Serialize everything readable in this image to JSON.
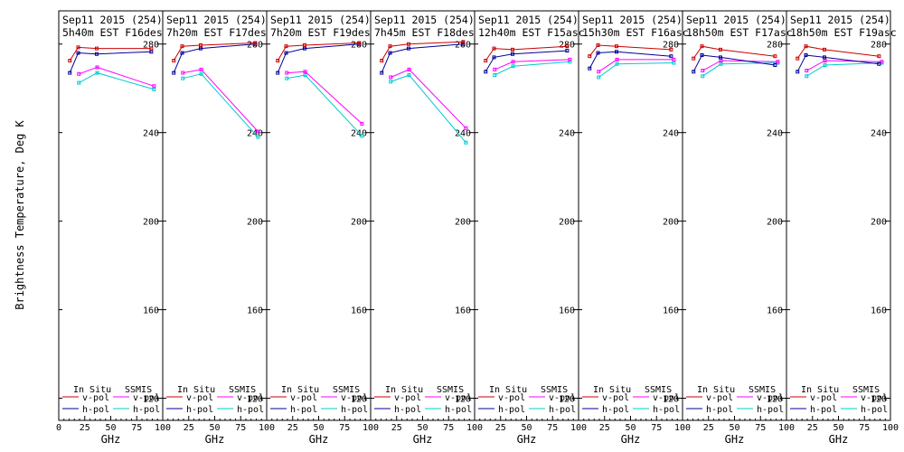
{
  "chart_data": {
    "type": "line",
    "ylabel": "Brightness Temperature, Deg K",
    "xlabel": "GHz",
    "xlim": [
      0,
      100
    ],
    "ylim": [
      110,
      295
    ],
    "yticks": [
      120,
      160,
      200,
      240,
      280
    ],
    "xticks_first": [
      "0",
      "25",
      "50",
      "75",
      "100"
    ],
    "xticks_rest": [
      "25",
      "50",
      "75",
      "100"
    ],
    "legend": {
      "in_situ_title": "In Situ",
      "ssmis_title": "SSMIS",
      "vpol": "v-pol",
      "hpol": "h-pol"
    },
    "colors": {
      "in_situ_v": "#cc0000",
      "in_situ_h": "#000099",
      "ssmis_v": "#ff00ff",
      "ssmis_h": "#00cccc"
    },
    "panels": [
      {
        "title1": "Sep11 2015 (254)",
        "title2": "5h40m EST F16des",
        "in_situ_v": {
          "x": [
            10.65,
            18.7,
            36.5,
            89.0
          ],
          "y": [
            272.5,
            278.5,
            278,
            278
          ]
        },
        "in_situ_h": {
          "x": [
            10.65,
            18.7,
            36.5,
            89.0
          ],
          "y": [
            267,
            276,
            275.5,
            276.5
          ]
        },
        "ssmis_v": {
          "x": [
            19.35,
            37.0,
            91.65
          ],
          "y": [
            266.5,
            269.5,
            261
          ]
        },
        "ssmis_h": {
          "x": [
            19.35,
            37.0,
            91.65
          ],
          "y": [
            262.5,
            267,
            259.5
          ]
        }
      },
      {
        "title1": "Sep11 2015 (254)",
        "title2": "7h20m EST F17des",
        "in_situ_v": {
          "x": [
            10.65,
            18.7,
            36.5,
            89.0
          ],
          "y": [
            272.5,
            279,
            279.5,
            280.5
          ]
        },
        "in_situ_h": {
          "x": [
            10.65,
            18.7,
            36.5,
            89.0
          ],
          "y": [
            267,
            276,
            278,
            280
          ]
        },
        "ssmis_v": {
          "x": [
            19.35,
            37.0,
            91.65
          ],
          "y": [
            267,
            268.5,
            240.5
          ]
        },
        "ssmis_h": {
          "x": [
            19.35,
            37.0,
            91.65
          ],
          "y": [
            264.5,
            266.5,
            238
          ]
        }
      },
      {
        "title1": "Sep11 2015 (254)",
        "title2": "7h20m EST F19des",
        "in_situ_v": {
          "x": [
            10.65,
            18.7,
            36.5,
            89.0
          ],
          "y": [
            272.5,
            279,
            279.5,
            280.5
          ]
        },
        "in_situ_h": {
          "x": [
            10.65,
            18.7,
            36.5,
            89.0
          ],
          "y": [
            267,
            276,
            278,
            280
          ]
        },
        "ssmis_v": {
          "x": [
            19.35,
            37.0,
            91.65
          ],
          "y": [
            267,
            267.5,
            244
          ]
        },
        "ssmis_h": {
          "x": [
            19.35,
            37.0,
            91.65
          ],
          "y": [
            264.5,
            266,
            238.5
          ]
        }
      },
      {
        "title1": "Sep11 2015 (254)",
        "title2": "7h45m EST F18des",
        "in_situ_v": {
          "x": [
            10.65,
            18.7,
            36.5,
            89.0
          ],
          "y": [
            272.5,
            279,
            280,
            281
          ]
        },
        "in_situ_h": {
          "x": [
            10.65,
            18.7,
            36.5,
            89.0
          ],
          "y": [
            267,
            276,
            278,
            280
          ]
        },
        "ssmis_v": {
          "x": [
            19.35,
            37.0,
            91.65
          ],
          "y": [
            265,
            268.5,
            242
          ]
        },
        "ssmis_h": {
          "x": [
            19.35,
            37.0,
            91.65
          ],
          "y": [
            263,
            266,
            235.5
          ]
        }
      },
      {
        "title1": "Sep11 2015 (254)",
        "title2": "12h40m EST F15asc",
        "in_situ_v": {
          "x": [
            10.65,
            18.7,
            36.5,
            89.0
          ],
          "y": [
            272.5,
            278,
            277.5,
            279
          ]
        },
        "in_situ_h": {
          "x": [
            10.65,
            18.7,
            36.5,
            89.0
          ],
          "y": [
            267.5,
            274,
            275.5,
            277
          ]
        },
        "ssmis_v": {
          "x": [
            19.35,
            37.0,
            91.65
          ],
          "y": [
            268.5,
            272,
            273
          ]
        },
        "ssmis_h": {
          "x": [
            19.35,
            37.0,
            91.65
          ],
          "y": [
            266,
            270,
            272
          ]
        }
      },
      {
        "title1": "Sep11 2015 (254)",
        "title2": "15h30m EST F16asc",
        "in_situ_v": {
          "x": [
            10.65,
            18.7,
            36.5,
            89.0
          ],
          "y": [
            274.5,
            279.5,
            279,
            277.5
          ]
        },
        "in_situ_h": {
          "x": [
            10.65,
            18.7,
            36.5,
            89.0
          ],
          "y": [
            269,
            276,
            276.5,
            274.5
          ]
        },
        "ssmis_v": {
          "x": [
            19.35,
            37.0,
            91.65
          ],
          "y": [
            267.5,
            273,
            273
          ]
        },
        "ssmis_h": {
          "x": [
            19.35,
            37.0,
            91.65
          ],
          "y": [
            265,
            271,
            271.5
          ]
        }
      },
      {
        "title1": "Sep11 2015 (254)",
        "title2": "18h50m EST F17asc",
        "in_situ_v": {
          "x": [
            10.65,
            18.7,
            36.5,
            89.0
          ],
          "y": [
            273.5,
            279,
            277.5,
            274.5
          ]
        },
        "in_situ_h": {
          "x": [
            10.65,
            18.7,
            36.5,
            89.0
          ],
          "y": [
            267.5,
            275,
            274,
            270.5
          ]
        },
        "ssmis_v": {
          "x": [
            19.35,
            37.0,
            91.65
          ],
          "y": [
            268,
            272.5,
            272
          ]
        },
        "ssmis_h": {
          "x": [
            19.35,
            37.0,
            91.65
          ],
          "y": [
            265.5,
            271,
            271.5
          ]
        }
      },
      {
        "title1": "Sep11 2015 (254)",
        "title2": "18h50m EST F19asc",
        "in_situ_v": {
          "x": [
            10.65,
            18.7,
            36.5,
            89.0
          ],
          "y": [
            273.5,
            279,
            277.5,
            274.5
          ]
        },
        "in_situ_h": {
          "x": [
            10.65,
            18.7,
            36.5,
            89.0
          ],
          "y": [
            267.5,
            275,
            274,
            271
          ]
        },
        "ssmis_v": {
          "x": [
            19.35,
            37.0,
            91.65
          ],
          "y": [
            268,
            272.5,
            272
          ]
        },
        "ssmis_h": {
          "x": [
            19.35,
            37.0,
            91.65
          ],
          "y": [
            265.5,
            270.5,
            271.5
          ]
        }
      }
    ]
  }
}
